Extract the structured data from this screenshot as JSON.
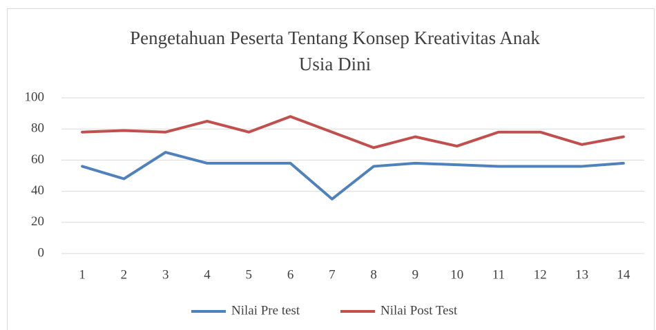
{
  "chart_data": {
    "type": "line",
    "title": [
      "Pengetahuan Peserta Tentang Konsep Kreativitas Anak",
      "Usia Dini"
    ],
    "categories": [
      "1",
      "2",
      "3",
      "4",
      "5",
      "6",
      "7",
      "8",
      "9",
      "10",
      "11",
      "12",
      "13",
      "14"
    ],
    "series": [
      {
        "name": "Nilai Pre test",
        "color": "#4f81bd",
        "values": [
          56,
          48,
          65,
          58,
          58,
          58,
          35,
          56,
          58,
          57,
          56,
          56,
          56,
          58
        ]
      },
      {
        "name": "Nilai Post Test",
        "color": "#c0504d",
        "values": [
          78,
          79,
          78,
          85,
          78,
          88,
          78,
          68,
          75,
          69,
          78,
          78,
          70,
          75
        ]
      }
    ],
    "ylim": [
      0,
      100
    ],
    "yticks": [
      0,
      20,
      40,
      60,
      80,
      100
    ],
    "grid": true,
    "legend": "bottom"
  }
}
